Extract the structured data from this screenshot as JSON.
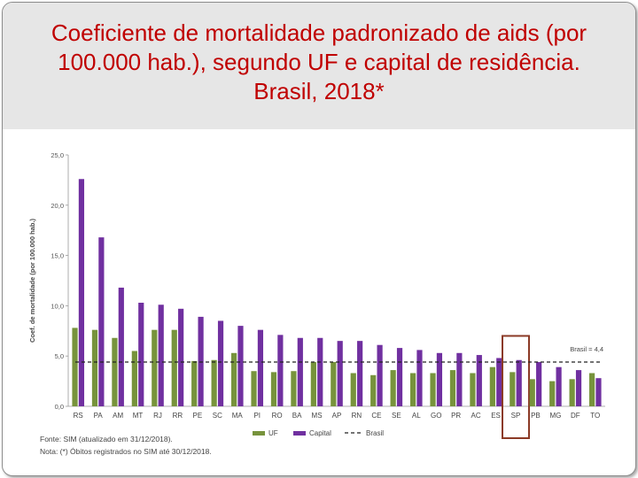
{
  "slide": {
    "title": "Coeficiente de mortalidade padronizado de aids (por 100.000 hab.), segundo UF e capital de residência. Brasil, 2018*"
  },
  "chart_data": {
    "type": "bar",
    "title": "",
    "ylabel": "Coef. de mortalidade (por 100.000 hab.)",
    "xlabel": "",
    "ylim": [
      0,
      25
    ],
    "yticks": [
      0,
      5,
      10,
      15,
      20,
      25
    ],
    "ytick_labels": [
      "0,0",
      "5,0",
      "10,0",
      "15,0",
      "20,0",
      "25,0"
    ],
    "categories": [
      "RS",
      "PA",
      "AM",
      "MT",
      "RJ",
      "RR",
      "PE",
      "SC",
      "MA",
      "PI",
      "RO",
      "BA",
      "MS",
      "AP",
      "RN",
      "CE",
      "SE",
      "AL",
      "GO",
      "PR",
      "AC",
      "ES",
      "SP",
      "PB",
      "MG",
      "DF",
      "TO"
    ],
    "series": [
      {
        "name": "UF",
        "color": "#77933c",
        "values": [
          7.8,
          7.6,
          6.8,
          5.5,
          7.6,
          7.6,
          4.5,
          4.6,
          5.3,
          3.5,
          3.4,
          3.5,
          4.4,
          4.4,
          3.3,
          3.1,
          3.6,
          3.3,
          3.3,
          3.6,
          3.3,
          3.9,
          3.4,
          2.7,
          2.5,
          2.7,
          3.3
        ]
      },
      {
        "name": "Capital",
        "color": "#7030a0",
        "values": [
          22.6,
          16.8,
          11.8,
          10.3,
          10.1,
          9.7,
          8.9,
          8.5,
          8.0,
          7.6,
          7.1,
          6.8,
          6.8,
          6.5,
          6.5,
          6.1,
          5.8,
          5.6,
          5.3,
          5.3,
          5.1,
          4.8,
          4.6,
          4.4,
          3.9,
          3.6,
          2.8
        ]
      },
      {
        "name": "Brasil",
        "type": "reference_line",
        "value": 4.4
      }
    ],
    "reference_label": "Brasil = 4,4",
    "highlight_category": "SP",
    "highlight_color": "#8b3a26",
    "legend": [
      "UF",
      "Capital",
      "Brasil"
    ],
    "legend_position": "bottom"
  },
  "footnotes": {
    "source": "Fonte: SIM (atualizado em 31/12/2018).",
    "note": "Nota: (*) Óbitos registrados no SIM até 30/12/2018."
  }
}
